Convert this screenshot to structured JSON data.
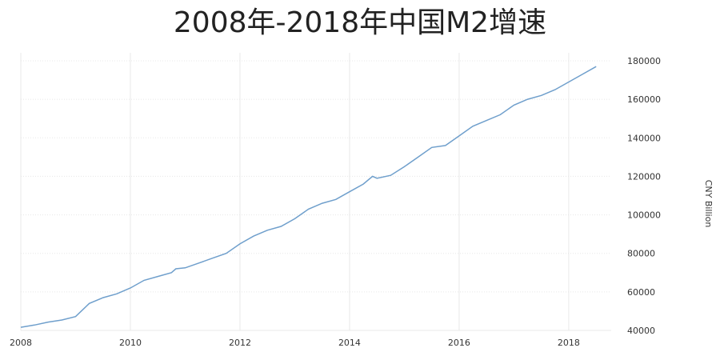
{
  "chart_data": {
    "type": "line",
    "title": "2008年-2018年中国M2增速",
    "ylabel": "CNY Billion",
    "xlabel": "",
    "xlim": [
      2008.0,
      2018.6
    ],
    "ylim": [
      40000,
      180000
    ],
    "x_ticks": [
      2008,
      2010,
      2012,
      2014,
      2016,
      2018
    ],
    "y_ticks": [
      40000,
      60000,
      80000,
      100000,
      120000,
      140000,
      160000,
      180000
    ],
    "grid": true,
    "line_color": "#6f9fcc",
    "grid_color": "#e8e8e8",
    "series": [
      {
        "x": [
          2008.0,
          2008.25,
          2008.5,
          2008.75,
          2009.0,
          2009.25,
          2009.5,
          2009.75,
          2010.0,
          2010.25,
          2010.5,
          2010.75,
          2010.83,
          2011.0,
          2011.25,
          2011.5,
          2011.75,
          2012.0,
          2012.25,
          2012.5,
          2012.75,
          2013.0,
          2013.25,
          2013.5,
          2013.75,
          2014.0,
          2014.25,
          2014.42,
          2014.5,
          2014.75,
          2015.0,
          2015.25,
          2015.5,
          2015.75,
          2016.0,
          2016.25,
          2016.5,
          2016.75,
          2017.0,
          2017.25,
          2017.5,
          2017.75,
          2018.0,
          2018.25,
          2018.5
        ],
        "y": [
          41600,
          42800,
          44300,
          45400,
          47200,
          54000,
          57000,
          59000,
          62000,
          66000,
          68000,
          70000,
          72000,
          72500,
          75000,
          77500,
          80000,
          85000,
          89000,
          92000,
          94000,
          98000,
          103000,
          106000,
          108000,
          112000,
          116000,
          120000,
          119000,
          120500,
          125000,
          130000,
          135000,
          136000,
          141000,
          146000,
          149000,
          152000,
          157000,
          160000,
          162000,
          165000,
          169000,
          173000,
          177000
        ]
      }
    ]
  }
}
